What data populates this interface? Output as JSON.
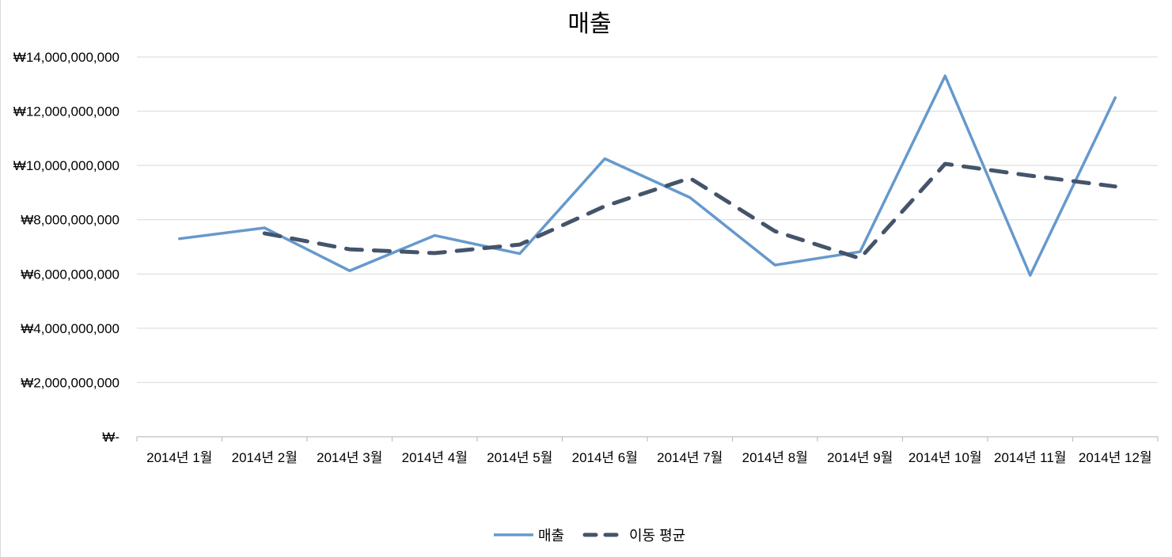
{
  "chart_data": {
    "type": "line",
    "title": "매출",
    "xlabel": "",
    "ylabel": "",
    "categories": [
      "2014년 1월",
      "2014년 2월",
      "2014년 3월",
      "2014년 4월",
      "2014년 5월",
      "2014년 6월",
      "2014년 7월",
      "2014년 8월",
      "2014년 9월",
      "2014년 10월",
      "2014년 11월",
      "2014년 12월"
    ],
    "ylim": [
      0,
      14000000000
    ],
    "yticks": [
      0,
      2000000000,
      4000000000,
      6000000000,
      8000000000,
      10000000000,
      12000000000,
      14000000000
    ],
    "ytick_labels": [
      "₩-",
      "₩2,000,000,000",
      "₩4,000,000,000",
      "₩6,000,000,000",
      "₩8,000,000,000",
      "₩10,000,000,000",
      "₩12,000,000,000",
      "₩14,000,000,000"
    ],
    "grid": true,
    "legend": "bottom",
    "series": [
      {
        "name": "매출",
        "style": "solid",
        "color": "#6699cc",
        "values": [
          7300000000,
          7700000000,
          6120000000,
          7420000000,
          6750000000,
          10250000000,
          8820000000,
          6330000000,
          6820000000,
          13300000000,
          5950000000,
          12500000000
        ]
      },
      {
        "name": "이동 평균",
        "style": "dashed",
        "color": "#44546a",
        "values": [
          null,
          7500000000,
          6910000000,
          6770000000,
          7085000000,
          8500000000,
          9535000000,
          7575000000,
          6575000000,
          10060000000,
          9625000000,
          9225000000
        ]
      }
    ]
  }
}
